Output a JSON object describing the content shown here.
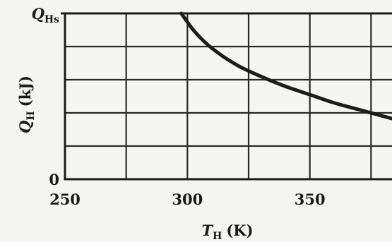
{
  "chart_data": {
    "type": "line",
    "title": "",
    "xlabel": {
      "symbol": "T",
      "subscript": "H",
      "unit": "(K)"
    },
    "ylabel": {
      "symbol": "Q",
      "subscript": "H",
      "unit": "(kJ)"
    },
    "xlim": [
      250,
      385
    ],
    "ylim": [
      0,
      1
    ],
    "x_ticks": [
      {
        "value": 250,
        "label": "250"
      },
      {
        "value": 300,
        "label": "300"
      },
      {
        "value": 350,
        "label": "350"
      }
    ],
    "y_ticks": [
      {
        "value": 0,
        "label": "0"
      },
      {
        "value": 1,
        "label": "Q",
        "subscript": "Hs"
      }
    ],
    "x_gridlines": [
      275,
      300,
      325,
      350,
      375
    ],
    "y_gridlines": [
      0.2,
      0.4,
      0.6,
      0.8
    ],
    "grid": true,
    "series": [
      {
        "x": [
          297.5,
          303,
          310,
          320,
          330,
          340,
          350,
          360,
          370,
          385
        ],
        "y": [
          1.0,
          0.89,
          0.79,
          0.69,
          0.62,
          0.56,
          0.51,
          0.46,
          0.42,
          0.36
        ]
      }
    ]
  }
}
